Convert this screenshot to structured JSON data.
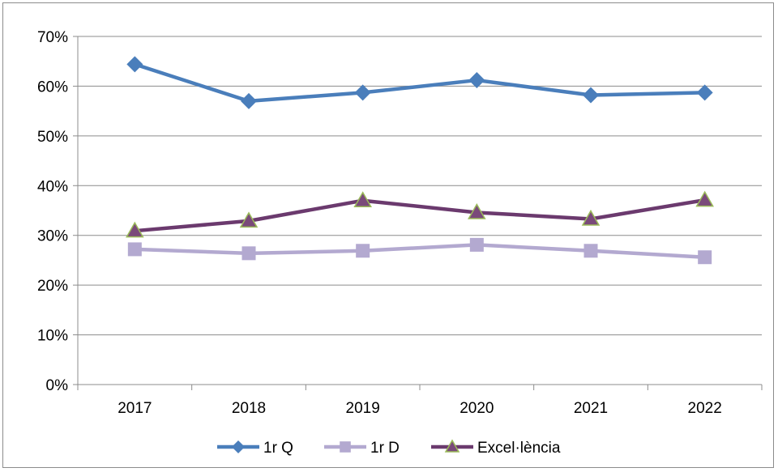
{
  "chart_data": {
    "type": "line",
    "categories": [
      "2017",
      "2018",
      "2019",
      "2020",
      "2021",
      "2022"
    ],
    "ylim": [
      0,
      0.7
    ],
    "yticks": [
      0,
      0.1,
      0.2,
      0.3,
      0.4,
      0.5,
      0.6,
      0.7
    ],
    "ytick_labels": [
      "0%",
      "10%",
      "20%",
      "30%",
      "40%",
      "50%",
      "60%",
      "70%"
    ],
    "grid": true,
    "legend_position": "bottom",
    "series": [
      {
        "name": "1r Q",
        "values": [
          0.644,
          0.57,
          0.587,
          0.612,
          0.582,
          0.587
        ],
        "color": "#4a7ebb",
        "marker": "diamond"
      },
      {
        "name": "1r D",
        "values": [
          0.272,
          0.264,
          0.269,
          0.281,
          0.269,
          0.256
        ],
        "color": "#b3a9d0",
        "marker": "square"
      },
      {
        "name": "Excel·lència",
        "values": [
          0.309,
          0.329,
          0.37,
          0.346,
          0.333,
          0.371
        ],
        "color": "#6b3a6e",
        "marker": "triangle",
        "marker_fill": "#7a4a7a",
        "marker_stroke": "#9bbb59"
      }
    ]
  }
}
